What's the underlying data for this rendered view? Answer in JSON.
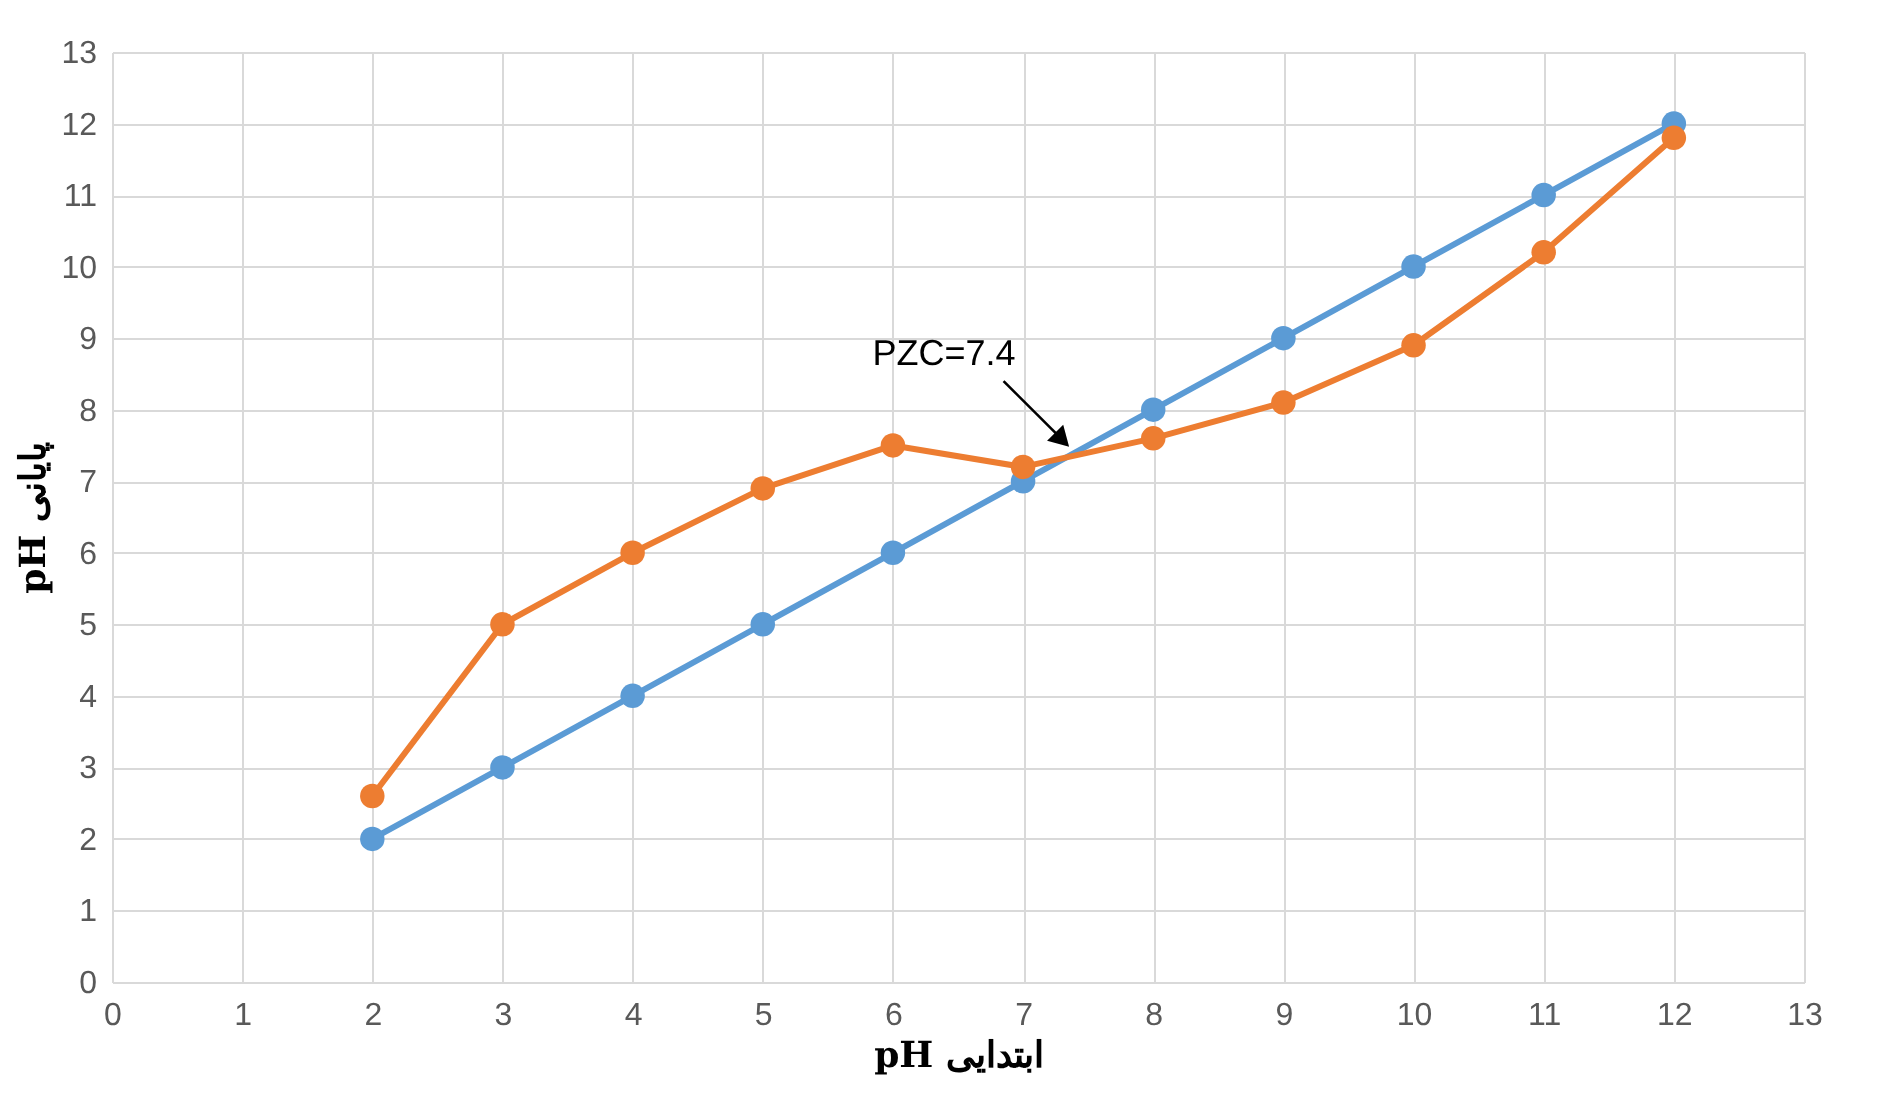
{
  "chart_data": {
    "type": "line",
    "xlabel": "pH ابتدایی",
    "ylabel": "pH پایانی",
    "x": [
      2,
      3,
      4,
      5,
      6,
      7,
      8,
      9,
      10,
      11,
      12
    ],
    "series": [
      {
        "color": "#5b9bd5",
        "values": [
          2,
          3,
          4,
          5,
          6,
          7,
          8,
          9,
          10,
          11,
          12
        ]
      },
      {
        "color": "#ed7d31",
        "values": [
          2.6,
          5.0,
          6.0,
          6.9,
          7.5,
          7.2,
          7.6,
          8.1,
          8.9,
          10.2,
          11.8
        ]
      }
    ],
    "xlim": [
      0,
      13
    ],
    "ylim": [
      0,
      13
    ],
    "xticks": [
      0,
      1,
      2,
      3,
      4,
      5,
      6,
      7,
      8,
      9,
      10,
      11,
      12,
      13
    ],
    "yticks": [
      0,
      1,
      2,
      3,
      4,
      5,
      6,
      7,
      8,
      9,
      10,
      11,
      12,
      13
    ],
    "grid": true,
    "marker": "circle",
    "line_style": "solid",
    "annotations": [
      {
        "text": "PZC=7.4",
        "x": 7.4,
        "y": 7.4
      }
    ]
  }
}
